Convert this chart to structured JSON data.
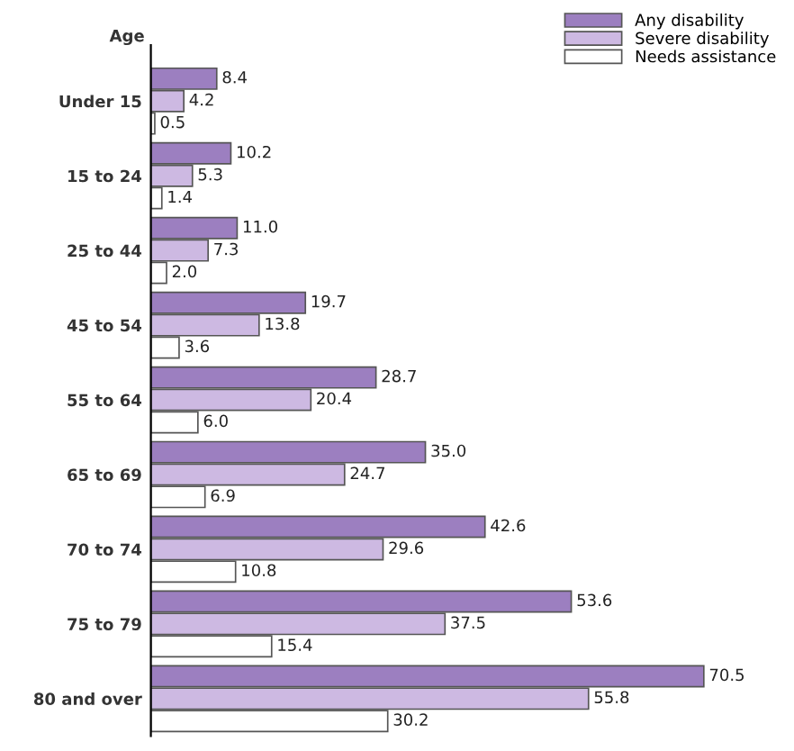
{
  "chart_data": {
    "type": "bar",
    "orientation": "horizontal",
    "ylabel": "Age",
    "categories": [
      "Under 15",
      "15 to 24",
      "25 to 44",
      "45 to 54",
      "55 to 64",
      "65 to 69",
      "70 to 74",
      "75 to 79",
      "80 and over"
    ],
    "series": [
      {
        "name": "Any disability",
        "color": "#9c7fc0",
        "values": [
          8.4,
          10.2,
          11.0,
          19.7,
          28.7,
          35.0,
          42.6,
          53.6,
          70.5
        ],
        "value_labels": [
          "8.4",
          "10.2",
          "11.0",
          "19.7",
          "28.7",
          "35.0",
          "42.6",
          "53.6",
          "70.5"
        ]
      },
      {
        "name": "Severe disability",
        "color": "#cdb9e2",
        "values": [
          4.2,
          5.3,
          7.3,
          13.8,
          20.4,
          24.7,
          29.6,
          37.5,
          55.8
        ],
        "value_labels": [
          "4.2",
          "5.3",
          "7.3",
          "13.8",
          "20.4",
          "24.7",
          "29.6",
          "37.5",
          "55.8"
        ]
      },
      {
        "name": "Needs assistance",
        "color": "#ffffff",
        "values": [
          0.5,
          1.4,
          2.0,
          3.6,
          6.0,
          6.9,
          10.8,
          15.4,
          30.2
        ],
        "value_labels": [
          "0.5",
          "1.4",
          "2.0",
          "3.6",
          "6.0",
          "6.9",
          "10.8",
          "15.4",
          "30.2"
        ]
      }
    ],
    "legend": "top right",
    "grid": false
  }
}
